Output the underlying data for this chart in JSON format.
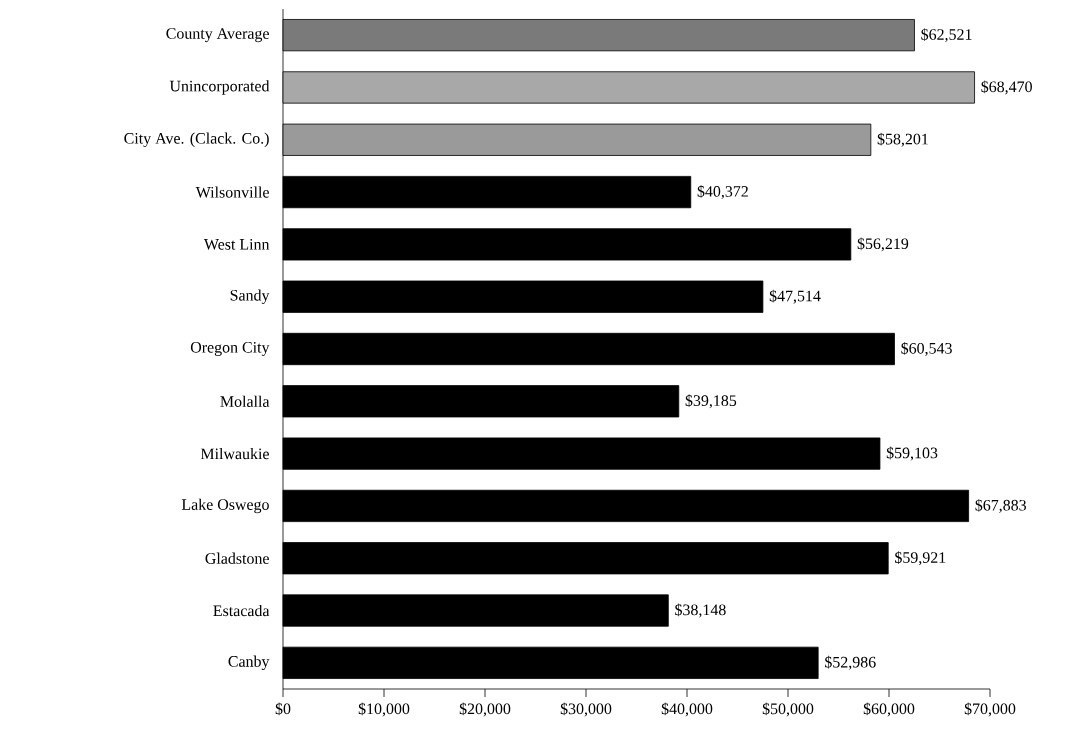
{
  "chart_data": {
    "type": "bar",
    "orientation": "horizontal",
    "categories": [
      "County Average",
      "Unincorporated",
      "City Ave. (Clack. Co.)",
      "Wilsonville",
      "West Linn",
      "Sandy",
      "Oregon City",
      "Molalla",
      "Milwaukie",
      "Lake Oswego",
      "Gladstone",
      "Estacada",
      "Canby"
    ],
    "values": [
      62521,
      68470,
      58201,
      40372,
      56219,
      47514,
      60543,
      39185,
      59103,
      67883,
      59921,
      38148,
      52986
    ],
    "value_labels": [
      "$62,521",
      "$68,470",
      "$58,201",
      "$40,372",
      "$56,219",
      "$47,514",
      "$60,543",
      "$39,185",
      "$59,103",
      "$67,883",
      "$59,921",
      "$38,148",
      "$52,986"
    ],
    "colors": [
      "#7a7a7a",
      "#a8a8a8",
      "#9a9a9a",
      "#000000",
      "#000000",
      "#000000",
      "#000000",
      "#000000",
      "#000000",
      "#000000",
      "#000000",
      "#000000",
      "#000000"
    ],
    "xlim": [
      0,
      70000
    ],
    "xticks": [
      {
        "value": 0,
        "label": "$0"
      },
      {
        "value": 10000,
        "label": "$10,000"
      },
      {
        "value": 20000,
        "label": "$20,000"
      },
      {
        "value": 30000,
        "label": "$30,000"
      },
      {
        "value": 40000,
        "label": "$40,000"
      },
      {
        "value": 50000,
        "label": "$50,000"
      },
      {
        "value": 60000,
        "label": "$60,000"
      },
      {
        "value": 70000,
        "label": "$70,000"
      }
    ],
    "grid": false
  }
}
